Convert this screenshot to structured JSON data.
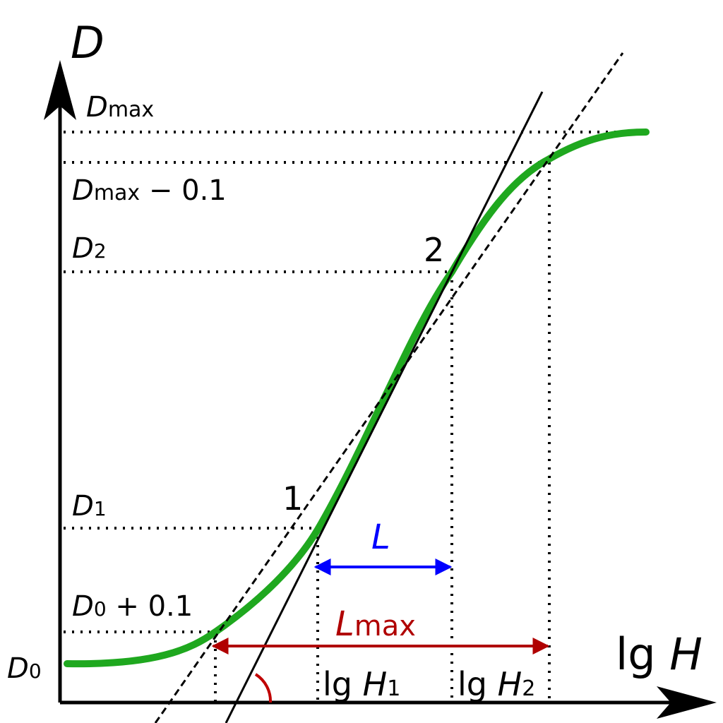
{
  "labels": {
    "y_axis": "D",
    "x_axis": [
      "lg ",
      "H"
    ],
    "d_max": [
      "D",
      "max"
    ],
    "d_max_minus": [
      "D",
      "max",
      " − 0.1"
    ],
    "d2": [
      "D",
      "2"
    ],
    "d1": [
      "D",
      "1"
    ],
    "d0_plus": [
      "D",
      "0",
      " + 0.1"
    ],
    "d0": [
      "D",
      "0"
    ],
    "point_1": "1",
    "point_2": "2",
    "l": "L",
    "l_max": [
      "L",
      "max"
    ],
    "lg_h1": [
      "lg ",
      "H",
      "1"
    ],
    "lg_h2": [
      "lg ",
      "H",
      "2"
    ]
  }
}
